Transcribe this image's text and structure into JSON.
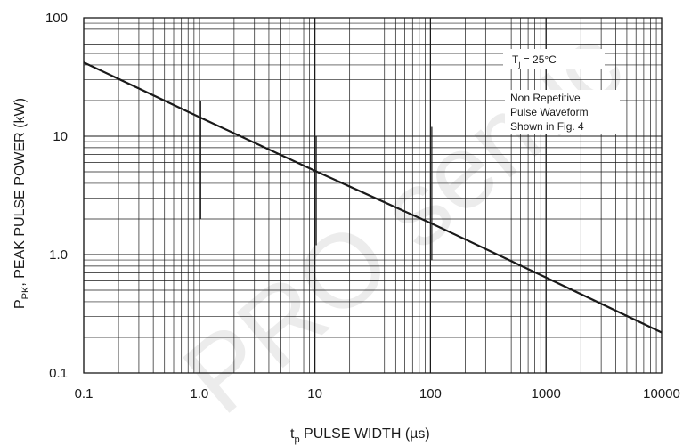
{
  "chart_data": {
    "type": "line",
    "title": "",
    "xlabel": "t<sub>p</sub> PULSE WIDTH (µs)",
    "xlabel_main": "t",
    "xlabel_sub": "p",
    "xlabel_rest": " PULSE WIDTH (µs)",
    "ylabel_main": "P",
    "ylabel_sub": "PK",
    "ylabel_rest": ", PEAK PULSE POWER (kW)",
    "x_scale": "log",
    "y_scale": "log",
    "xlim": [
      0.1,
      10000
    ],
    "ylim": [
      0.1,
      100
    ],
    "grid": true,
    "x_ticks": [
      0.1,
      1.0,
      10,
      100,
      1000,
      10000
    ],
    "x_tick_labels": [
      "0.1",
      "1.0",
      "10",
      "100",
      "1000",
      "10000"
    ],
    "y_ticks": [
      0.1,
      1.0,
      10,
      100
    ],
    "y_tick_labels": [
      "0.1",
      "1.0",
      "10",
      "100"
    ],
    "series": [
      {
        "x": [
          0.1,
          1.0,
          10,
          100,
          1000,
          10000
        ],
        "y": [
          42,
          14.5,
          5.1,
          1.85,
          0.64,
          0.22
        ],
        "color": "#1a1a1a"
      }
    ],
    "annotations": {
      "tj_main": "T",
      "tj_sub": "j",
      "tj_rest": " = 25°C",
      "note_lines": [
        "Non Repetitive",
        "Pulse Waveform",
        "Shown in Fig. 4"
      ]
    },
    "watermark": "PRO semic"
  }
}
